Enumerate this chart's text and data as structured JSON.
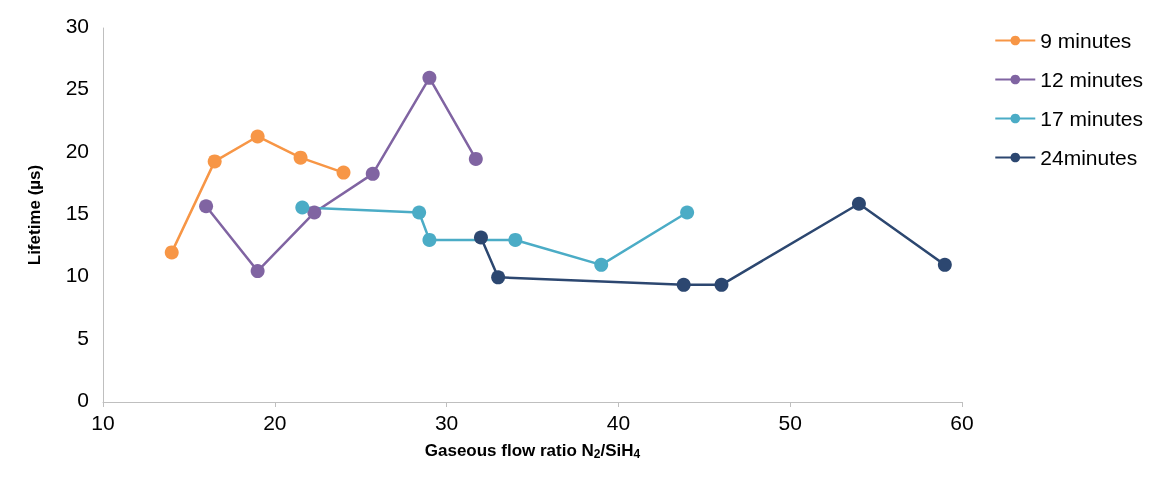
{
  "chart_data": {
    "type": "line",
    "xlabel": "Gaseous flow ratio N$_{2}$/SiH$_{4}$",
    "ylabel": "Lifetime (µs)",
    "xlim": [
      10,
      60
    ],
    "xticks": [
      10,
      20,
      30,
      40,
      50,
      60
    ],
    "ylim": [
      0,
      30
    ],
    "yticks": [
      0,
      5,
      10,
      15,
      20,
      25,
      30
    ],
    "grid": false,
    "legend": "right",
    "marker": "circle",
    "series": [
      {
        "name": "9 minutes",
        "color": "#f79646",
        "x": [
          14,
          16.5,
          19,
          21.5,
          24
        ],
        "values": [
          12,
          19.3,
          21.3,
          19.6,
          18.4
        ]
      },
      {
        "name": "12 minutes",
        "color": "#8064a2",
        "x": [
          16,
          19,
          22.3,
          25.7,
          29,
          31.7
        ],
        "values": [
          15.7,
          10.5,
          15.2,
          18.3,
          26,
          19.5
        ]
      },
      {
        "name": "17 minutes",
        "color": "#4bacc6",
        "x": [
          21.6,
          28.4,
          29,
          34,
          39,
          44
        ],
        "values": [
          15.6,
          15.2,
          13,
          13,
          11,
          15.2
        ]
      },
      {
        "name": "24minutes",
        "color": "#2c4770",
        "x": [
          32,
          33,
          43.8,
          46,
          54,
          59
        ],
        "values": [
          13.2,
          10,
          9.4,
          9.4,
          15.9,
          11
        ]
      }
    ]
  }
}
